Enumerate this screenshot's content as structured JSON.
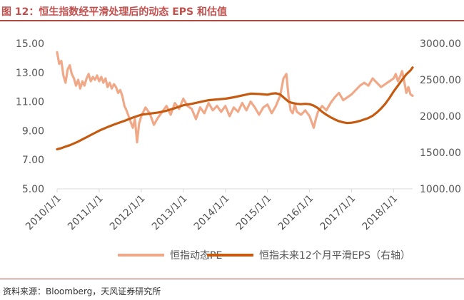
{
  "header": {
    "title": "图 12：恒生指数经平滑处理后的动态 EPS 和估值"
  },
  "footer": {
    "source": "资料来源：Bloomberg，天风证券研究所"
  },
  "colors": {
    "accent": "#c0504d",
    "pe_line": "#f0a988",
    "eps_line": "#c55a11",
    "axis": "#d9d9d9",
    "tick_text": "#555555"
  },
  "chart_data": {
    "type": "line",
    "title": "恒生指数经平滑处理后的动态 EPS 和估值",
    "xlabel": "",
    "ylabel": "",
    "x_range": [
      2010.0,
      2018.45
    ],
    "x_ticks": [
      {
        "label": "2010/1/1",
        "value": 2010.0
      },
      {
        "label": "2011/1/1",
        "value": 2011.0
      },
      {
        "label": "2012/1/1",
        "value": 2012.0
      },
      {
        "label": "2013/1/1",
        "value": 2013.0
      },
      {
        "label": "2014/1/1",
        "value": 2014.0
      },
      {
        "label": "2015/1/1",
        "value": 2015.0
      },
      {
        "label": "2016/1/1",
        "value": 2016.0
      },
      {
        "label": "2017/1/1",
        "value": 2017.0
      },
      {
        "label": "2018/1/1",
        "value": 2018.0
      }
    ],
    "y_left": {
      "range": [
        5.0,
        15.0
      ],
      "ticks": [
        "5.00",
        "7.00",
        "9.00",
        "11.00",
        "13.00",
        "15.00"
      ],
      "values": [
        5,
        7,
        9,
        11,
        13,
        15
      ]
    },
    "y_right": {
      "range": [
        1000.0,
        3000.0
      ],
      "ticks": [
        "1000.00",
        "1500.00",
        "2000.00",
        "2500.00",
        "3000.00"
      ],
      "values": [
        1000,
        1500,
        2000,
        2500,
        3000
      ]
    },
    "legend": {
      "position": "bottom"
    },
    "series": [
      {
        "name": "恒指动态PE",
        "axis": "left",
        "x": [
          2010.0,
          2010.05,
          2010.1,
          2010.15,
          2010.2,
          2010.25,
          2010.3,
          2010.35,
          2010.4,
          2010.45,
          2010.5,
          2010.55,
          2010.6,
          2010.65,
          2010.7,
          2010.75,
          2010.8,
          2010.85,
          2010.9,
          2010.95,
          2011.0,
          2011.05,
          2011.1,
          2011.15,
          2011.2,
          2011.25,
          2011.3,
          2011.35,
          2011.4,
          2011.45,
          2011.5,
          2011.55,
          2011.6,
          2011.65,
          2011.7,
          2011.75,
          2011.8,
          2011.85,
          2011.9,
          2011.95,
          2012.0,
          2012.1,
          2012.2,
          2012.3,
          2012.4,
          2012.5,
          2012.6,
          2012.7,
          2012.8,
          2012.9,
          2013.0,
          2013.1,
          2013.2,
          2013.3,
          2013.4,
          2013.5,
          2013.6,
          2013.7,
          2013.8,
          2013.9,
          2014.0,
          2014.1,
          2014.2,
          2014.3,
          2014.4,
          2014.5,
          2014.6,
          2014.7,
          2014.8,
          2014.9,
          2015.0,
          2015.1,
          2015.2,
          2015.3,
          2015.38,
          2015.45,
          2015.5,
          2015.55,
          2015.6,
          2015.65,
          2015.7,
          2015.8,
          2015.9,
          2016.0,
          2016.05,
          2016.1,
          2016.15,
          2016.2,
          2016.3,
          2016.4,
          2016.5,
          2016.6,
          2016.7,
          2016.8,
          2016.9,
          2017.0,
          2017.1,
          2017.2,
          2017.3,
          2017.4,
          2017.5,
          2017.6,
          2017.7,
          2017.8,
          2017.9,
          2018.0,
          2018.05,
          2018.1,
          2018.15,
          2018.2,
          2018.25,
          2018.3,
          2018.35,
          2018.4,
          2018.45
        ],
        "values": [
          14.4,
          13.6,
          13.8,
          12.8,
          12.3,
          13.2,
          13.5,
          12.9,
          12.6,
          12.1,
          12.5,
          11.9,
          12.4,
          12.1,
          12.6,
          12.9,
          12.4,
          12.7,
          12.5,
          12.8,
          12.4,
          12.7,
          12.3,
          12.6,
          12.0,
          12.3,
          11.9,
          12.2,
          12.0,
          11.6,
          11.8,
          11.4,
          10.7,
          10.4,
          10.0,
          9.6,
          9.2,
          9.8,
          8.2,
          9.5,
          10.0,
          10.6,
          10.2,
          9.4,
          9.9,
          10.3,
          10.7,
          10.1,
          10.9,
          10.5,
          11.2,
          10.7,
          10.5,
          9.8,
          10.6,
          10.2,
          10.9,
          10.4,
          10.7,
          10.3,
          10.7,
          10.0,
          10.6,
          10.3,
          10.9,
          10.4,
          11.0,
          10.6,
          10.1,
          10.6,
          10.8,
          10.2,
          10.7,
          11.4,
          12.6,
          12.9,
          11.4,
          10.4,
          10.2,
          10.8,
          10.3,
          10.1,
          10.4,
          10.0,
          9.6,
          9.2,
          9.8,
          10.3,
          10.7,
          10.4,
          10.9,
          11.3,
          11.6,
          11.1,
          11.3,
          11.5,
          11.8,
          12.1,
          12.3,
          12.1,
          12.6,
          12.3,
          12.0,
          12.2,
          12.4,
          12.6,
          12.9,
          12.4,
          12.7,
          13.1,
          12.4,
          11.6,
          12.0,
          11.5,
          11.4
        ]
      },
      {
        "name": "恒指未来12个月平滑EPS（右轴）",
        "axis": "right",
        "x": [
          2010.0,
          2010.1,
          2010.2,
          2010.3,
          2010.4,
          2010.5,
          2010.6,
          2010.7,
          2010.8,
          2010.9,
          2011.0,
          2011.2,
          2011.4,
          2011.6,
          2011.8,
          2012.0,
          2012.2,
          2012.4,
          2012.6,
          2012.8,
          2013.0,
          2013.2,
          2013.4,
          2013.6,
          2013.8,
          2014.0,
          2014.2,
          2014.4,
          2014.6,
          2014.8,
          2015.0,
          2015.1,
          2015.2,
          2015.3,
          2015.4,
          2015.5,
          2015.6,
          2015.7,
          2015.8,
          2015.9,
          2016.0,
          2016.1,
          2016.2,
          2016.3,
          2016.4,
          2016.5,
          2016.6,
          2016.7,
          2016.8,
          2016.9,
          2017.0,
          2017.1,
          2017.2,
          2017.3,
          2017.4,
          2017.5,
          2017.6,
          2017.7,
          2017.8,
          2017.9,
          2018.0,
          2018.1,
          2018.2,
          2018.3,
          2018.4,
          2018.45
        ],
        "values": [
          1545,
          1560,
          1580,
          1600,
          1625,
          1650,
          1680,
          1710,
          1740,
          1770,
          1800,
          1850,
          1895,
          1935,
          1980,
          2020,
          2035,
          2050,
          2075,
          2110,
          2150,
          2170,
          2195,
          2220,
          2230,
          2240,
          2260,
          2285,
          2310,
          2305,
          2295,
          2310,
          2315,
          2300,
          2250,
          2200,
          2180,
          2170,
          2165,
          2170,
          2165,
          2145,
          2110,
          2060,
          2020,
          1985,
          1955,
          1930,
          1915,
          1905,
          1910,
          1920,
          1935,
          1955,
          1975,
          2005,
          2050,
          2105,
          2170,
          2250,
          2340,
          2420,
          2500,
          2575,
          2630,
          2670
        ]
      }
    ]
  }
}
